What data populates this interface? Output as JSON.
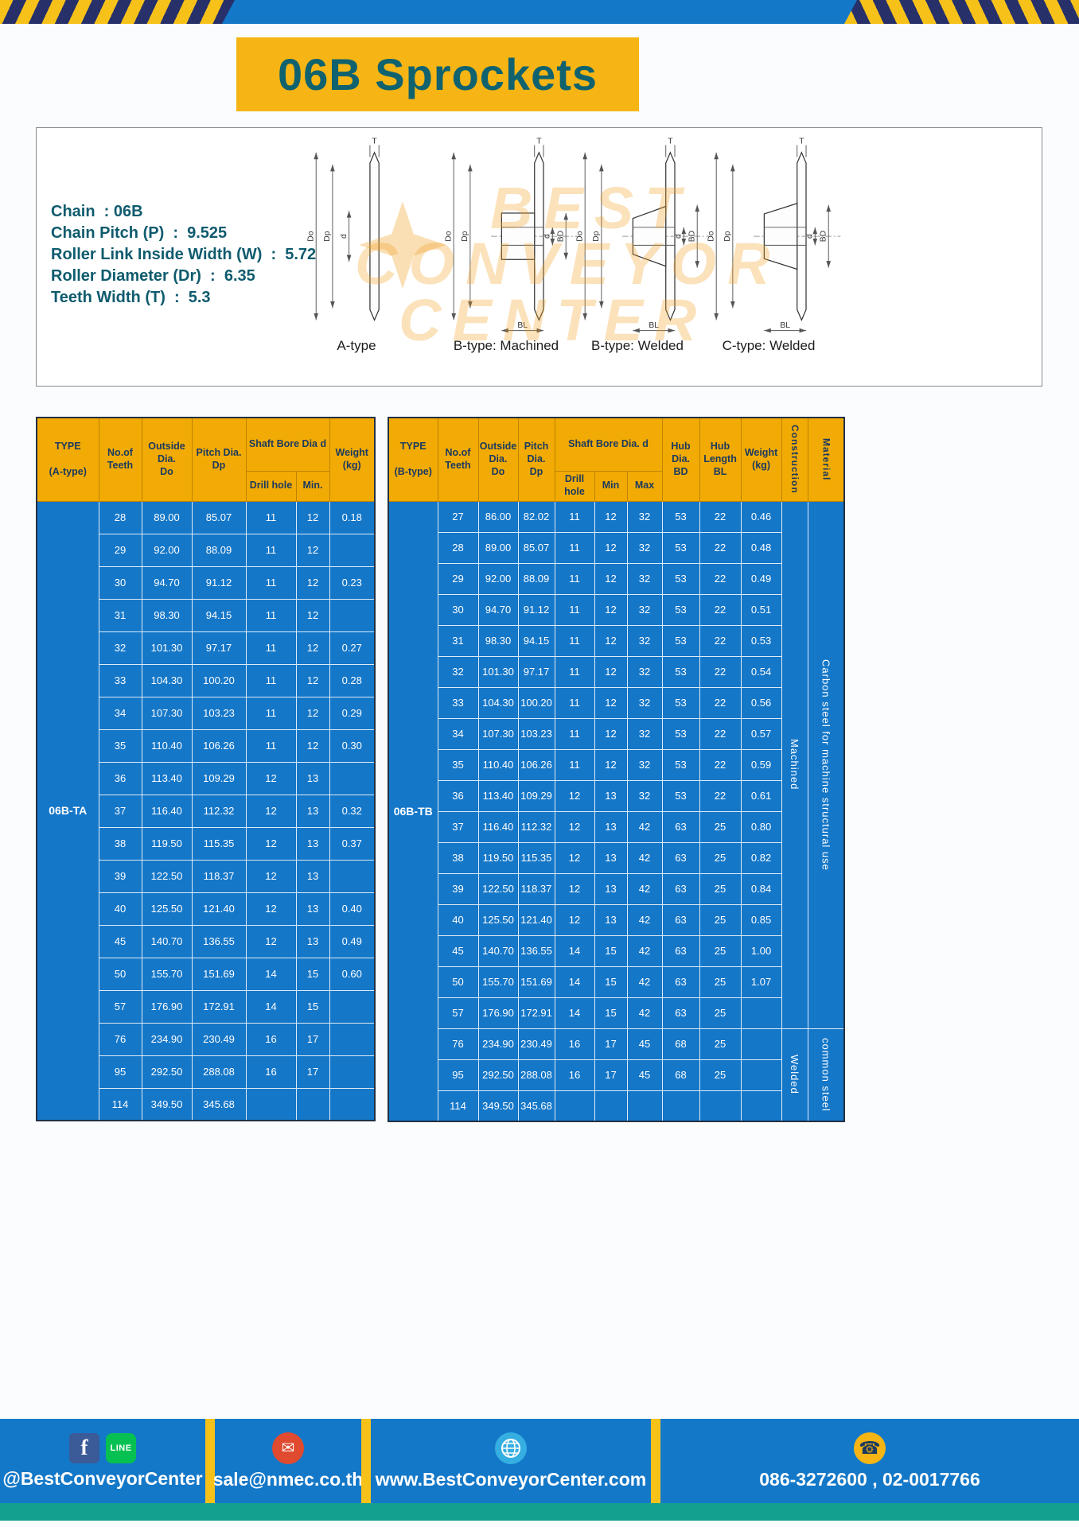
{
  "page": {
    "title": "06B Sprockets"
  },
  "specs": {
    "lines": [
      "Chain  : 06B",
      "Chain Pitch (P)  :  9.525",
      "Roller Link Inside Width (W)  :  5.72",
      "Roller Diameter (Dr)  :  6.35",
      "Teeth Width (T)  :  5.3"
    ]
  },
  "watermark": {
    "lines": [
      "BEST",
      "CONVEYOR",
      "CENTER"
    ]
  },
  "diagrams": [
    {
      "label": "A-type",
      "variant": "a",
      "dims": {
        "t": "T",
        "do": "Do",
        "dp": "Dp",
        "d": "d"
      }
    },
    {
      "label": "B-type: Machined",
      "variant": "machined",
      "dims": {
        "t": "T",
        "do": "Do",
        "dp": "Dp",
        "d": "d",
        "bd": "BD",
        "bl": "BL"
      }
    },
    {
      "label": "B-type: Welded",
      "variant": "welded",
      "dims": {
        "t": "T",
        "do": "Do",
        "dp": "Dp",
        "d": "d",
        "bd": "BD",
        "bl": "BL"
      }
    },
    {
      "label": "C-type: Welded",
      "variant": "welded-c",
      "dims": {
        "t": "T",
        "do": "Do",
        "dp": "Dp",
        "d": "d",
        "bd": "BD",
        "bl": "BL"
      }
    }
  ],
  "table_a": {
    "type_label": "06B-TA",
    "headers": {
      "type": "TYPE\n\n(A-type)",
      "teeth": "No.of\nTeeth",
      "outside": "Outside\nDia.\nDo",
      "pitch": "Pitch Dia.\nDp",
      "shaft": "Shaft Bore Dia d",
      "drill": "Drill hole",
      "min": "Min.",
      "weight": "Weight\n(kg)"
    },
    "rows": [
      [
        "28",
        "89.00",
        "85.07",
        "11",
        "12",
        "0.18"
      ],
      [
        "29",
        "92.00",
        "88.09",
        "11",
        "12",
        ""
      ],
      [
        "30",
        "94.70",
        "91.12",
        "11",
        "12",
        "0.23"
      ],
      [
        "31",
        "98.30",
        "94.15",
        "11",
        "12",
        ""
      ],
      [
        "32",
        "101.30",
        "97.17",
        "11",
        "12",
        "0.27"
      ],
      [
        "33",
        "104.30",
        "100.20",
        "11",
        "12",
        "0.28"
      ],
      [
        "34",
        "107.30",
        "103.23",
        "11",
        "12",
        "0.29"
      ],
      [
        "35",
        "110.40",
        "106.26",
        "11",
        "12",
        "0.30"
      ],
      [
        "36",
        "113.40",
        "109.29",
        "12",
        "13",
        ""
      ],
      [
        "37",
        "116.40",
        "112.32",
        "12",
        "13",
        "0.32"
      ],
      [
        "38",
        "119.50",
        "115.35",
        "12",
        "13",
        "0.37"
      ],
      [
        "39",
        "122.50",
        "118.37",
        "12",
        "13",
        ""
      ],
      [
        "40",
        "125.50",
        "121.40",
        "12",
        "13",
        "0.40"
      ],
      [
        "45",
        "140.70",
        "136.55",
        "12",
        "13",
        "0.49"
      ],
      [
        "50",
        "155.70",
        "151.69",
        "14",
        "15",
        "0.60"
      ],
      [
        "57",
        "176.90",
        "172.91",
        "14",
        "15",
        ""
      ],
      [
        "76",
        "234.90",
        "230.49",
        "16",
        "17",
        ""
      ],
      [
        "95",
        "292.50",
        "288.08",
        "16",
        "17",
        ""
      ],
      [
        "114",
        "349.50",
        "345.68",
        "",
        "",
        ""
      ]
    ]
  },
  "table_b": {
    "type_label": "06B-TB",
    "headers": {
      "type": "TYPE\n\n(B-type)",
      "teeth": "No.of\nTeeth",
      "outside": "Outside\nDia.\nDo",
      "pitch": "Pitch\nDia.\nDp",
      "shaft": "Shaft Bore Dia. d",
      "drill": "Drill hole",
      "min": "Min",
      "max": "Max",
      "hub_dia": "Hub\nDia.\nBD",
      "hub_len": "Hub\nLength\nBL",
      "weight": "Weight\n(kg)",
      "construction": "Construction",
      "material": "Material"
    },
    "rows": [
      [
        "27",
        "86.00",
        "82.02",
        "11",
        "12",
        "32",
        "53",
        "22",
        "0.46"
      ],
      [
        "28",
        "89.00",
        "85.07",
        "11",
        "12",
        "32",
        "53",
        "22",
        "0.48"
      ],
      [
        "29",
        "92.00",
        "88.09",
        "11",
        "12",
        "32",
        "53",
        "22",
        "0.49"
      ],
      [
        "30",
        "94.70",
        "91.12",
        "11",
        "12",
        "32",
        "53",
        "22",
        "0.51"
      ],
      [
        "31",
        "98.30",
        "94.15",
        "11",
        "12",
        "32",
        "53",
        "22",
        "0.53"
      ],
      [
        "32",
        "101.30",
        "97.17",
        "11",
        "12",
        "32",
        "53",
        "22",
        "0.54"
      ],
      [
        "33",
        "104.30",
        "100.20",
        "11",
        "12",
        "32",
        "53",
        "22",
        "0.56"
      ],
      [
        "34",
        "107.30",
        "103.23",
        "11",
        "12",
        "32",
        "53",
        "22",
        "0.57"
      ],
      [
        "35",
        "110.40",
        "106.26",
        "11",
        "12",
        "32",
        "53",
        "22",
        "0.59"
      ],
      [
        "36",
        "113.40",
        "109.29",
        "12",
        "13",
        "32",
        "53",
        "22",
        "0.61"
      ],
      [
        "37",
        "116.40",
        "112.32",
        "12",
        "13",
        "42",
        "63",
        "25",
        "0.80"
      ],
      [
        "38",
        "119.50",
        "115.35",
        "12",
        "13",
        "42",
        "63",
        "25",
        "0.82"
      ],
      [
        "39",
        "122.50",
        "118.37",
        "12",
        "13",
        "42",
        "63",
        "25",
        "0.84"
      ],
      [
        "40",
        "125.50",
        "121.40",
        "12",
        "13",
        "42",
        "63",
        "25",
        "0.85"
      ],
      [
        "45",
        "140.70",
        "136.55",
        "14",
        "15",
        "42",
        "63",
        "25",
        "1.00"
      ],
      [
        "50",
        "155.70",
        "151.69",
        "14",
        "15",
        "42",
        "63",
        "25",
        "1.07"
      ],
      [
        "57",
        "176.90",
        "172.91",
        "14",
        "15",
        "42",
        "63",
        "25",
        ""
      ],
      [
        "76",
        "234.90",
        "230.49",
        "16",
        "17",
        "45",
        "68",
        "25",
        ""
      ],
      [
        "95",
        "292.50",
        "288.08",
        "16",
        "17",
        "45",
        "68",
        "25",
        ""
      ],
      [
        "114",
        "349.50",
        "345.68",
        "",
        "",
        "",
        "",
        "",
        ""
      ]
    ],
    "construction": [
      {
        "label": "Machined",
        "span": 17
      },
      {
        "label": "Welded",
        "span": 3
      }
    ],
    "material": [
      {
        "label": "Carbon steel for machine structural use",
        "span": 17
      },
      {
        "label": "common steel",
        "span": 3
      }
    ]
  },
  "footer": {
    "facebook_label": "f",
    "line_label": "LINE",
    "mail_glyph": "✉",
    "phone_glyph": "☎",
    "social_handle": "@BestConveyorCenter",
    "email": "sale@nmec.co.th",
    "website": "www.BestConveyorCenter.com",
    "phone": "086-3272600 , 02-0017766"
  }
}
